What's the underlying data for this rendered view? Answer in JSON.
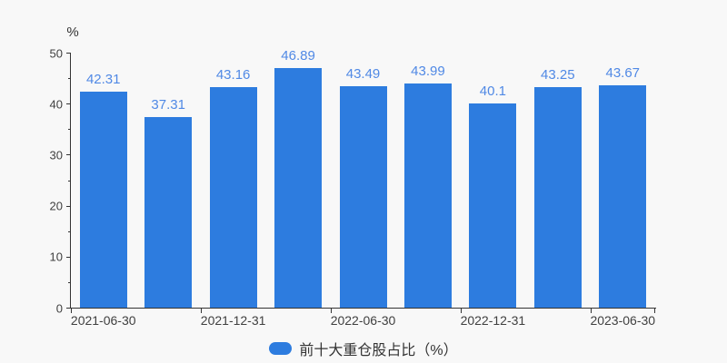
{
  "chart_data": {
    "type": "bar",
    "title": "",
    "series": [
      {
        "name": "前十大重仓股占比（%）",
        "values": [
          42.31,
          37.31,
          43.16,
          46.89,
          43.49,
          43.99,
          40.1,
          43.25,
          43.67
        ]
      }
    ],
    "value_labels": [
      "42.31",
      "37.31",
      "43.16",
      "46.89",
      "43.49",
      "43.99",
      "40.1",
      "43.25",
      "43.67"
    ],
    "x_axis": {
      "visible_tick_labels": [
        "2021-06-30",
        "2021-12-31",
        "2022-06-30",
        "2022-12-31",
        "2023-06-30"
      ],
      "labeled_bar_indices": [
        0,
        2,
        4,
        6,
        8
      ]
    },
    "y_axis": {
      "unit": "%",
      "min": 0,
      "max": 50,
      "major_ticks": [
        0,
        10,
        20,
        30,
        40,
        50
      ],
      "minor_tick_step": 5
    },
    "legend": {
      "label": "前十大重仓股占比（%）",
      "position": "bottom"
    },
    "colors": {
      "bar": "#2d7cdf",
      "value_label": "#5089e5",
      "axis": "#333333",
      "background": "#f8f8f8"
    },
    "grid": false
  }
}
